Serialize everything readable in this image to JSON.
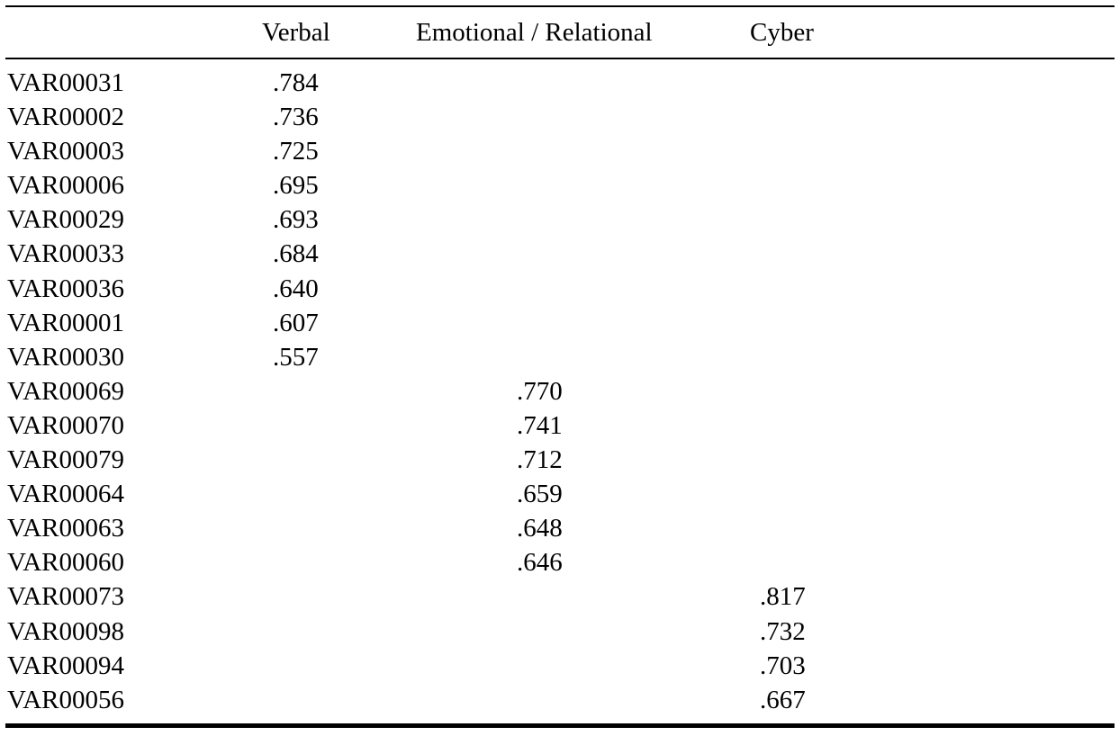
{
  "table": {
    "columns": {
      "verbal": "Verbal",
      "emotional": "Emotional / Relational",
      "cyber": "Cyber"
    },
    "rows": [
      {
        "var": "VAR00031",
        "verbal": ".784",
        "emotional": "",
        "cyber": ""
      },
      {
        "var": "VAR00002",
        "verbal": ".736",
        "emotional": "",
        "cyber": ""
      },
      {
        "var": "VAR00003",
        "verbal": ".725",
        "emotional": "",
        "cyber": ""
      },
      {
        "var": "VAR00006",
        "verbal": ".695",
        "emotional": "",
        "cyber": ""
      },
      {
        "var": "VAR00029",
        "verbal": ".693",
        "emotional": "",
        "cyber": ""
      },
      {
        "var": "VAR00033",
        "verbal": ".684",
        "emotional": "",
        "cyber": ""
      },
      {
        "var": "VAR00036",
        "verbal": ".640",
        "emotional": "",
        "cyber": ""
      },
      {
        "var": "VAR00001",
        "verbal": ".607",
        "emotional": "",
        "cyber": ""
      },
      {
        "var": "VAR00030",
        "verbal": ".557",
        "emotional": "",
        "cyber": ""
      },
      {
        "var": "VAR00069",
        "verbal": "",
        "emotional": ".770",
        "cyber": ""
      },
      {
        "var": "VAR00070",
        "verbal": "",
        "emotional": ".741",
        "cyber": ""
      },
      {
        "var": "VAR00079",
        "verbal": "",
        "emotional": ".712",
        "cyber": ""
      },
      {
        "var": "VAR00064",
        "verbal": "",
        "emotional": ".659",
        "cyber": ""
      },
      {
        "var": "VAR00063",
        "verbal": "",
        "emotional": ".648",
        "cyber": ""
      },
      {
        "var": "VAR00060",
        "verbal": "",
        "emotional": ".646",
        "cyber": ""
      },
      {
        "var": "VAR00073",
        "verbal": "",
        "emotional": "",
        "cyber": ".817"
      },
      {
        "var": "VAR00098",
        "verbal": "",
        "emotional": "",
        "cyber": ".732"
      },
      {
        "var": "VAR00094",
        "verbal": "",
        "emotional": "",
        "cyber": ".703"
      },
      {
        "var": "VAR00056",
        "verbal": "",
        "emotional": "",
        "cyber": ".667"
      }
    ]
  }
}
